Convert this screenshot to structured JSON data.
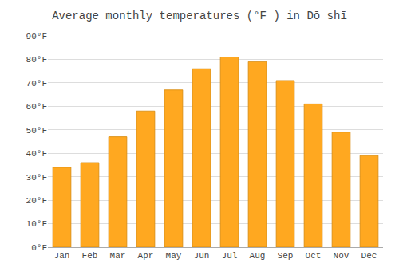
{
  "chart_data": {
    "type": "bar",
    "title": "Average monthly temperatures (°F ) in Dō shī",
    "categories": [
      "Jan",
      "Feb",
      "Mar",
      "Apr",
      "May",
      "Jun",
      "Jul",
      "Aug",
      "Sep",
      "Oct",
      "Nov",
      "Dec"
    ],
    "values": [
      34,
      36,
      47,
      58,
      67,
      76,
      81,
      79,
      71,
      61,
      49,
      39
    ],
    "color": "#FFA820",
    "ylim": [
      0,
      90
    ],
    "yticks": [
      {
        "value": 0,
        "label": "0°F"
      },
      {
        "value": 10,
        "label": "10°F"
      },
      {
        "value": 20,
        "label": "20°F"
      },
      {
        "value": 30,
        "label": "30°F"
      },
      {
        "value": 40,
        "label": "40°F"
      },
      {
        "value": 50,
        "label": "50°F"
      },
      {
        "value": 60,
        "label": "60°F"
      },
      {
        "value": 70,
        "label": "70°F"
      },
      {
        "value": 80,
        "label": "80°F"
      },
      {
        "value": 90,
        "label": "90°F"
      }
    ],
    "grid": true
  }
}
